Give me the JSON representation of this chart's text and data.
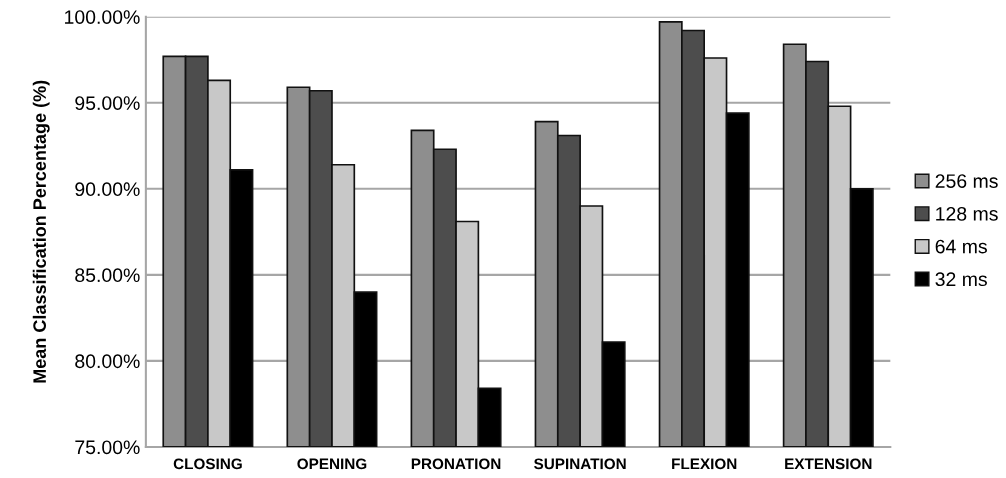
{
  "chart_data": {
    "type": "bar",
    "ylabel": "Mean Classification Percentage (%)",
    "categories": [
      "CLOSING",
      "OPENING",
      "PRONATION",
      "SUPINATION",
      "FLEXION",
      "EXTENSION"
    ],
    "series": [
      {
        "name": "256 ms",
        "color": "#8e8e8e",
        "values": [
          97.7,
          95.9,
          93.4,
          93.9,
          99.7,
          98.4
        ]
      },
      {
        "name": "128 ms",
        "color": "#4d4d4d",
        "values": [
          97.7,
          95.7,
          92.3,
          93.1,
          99.2,
          97.4
        ]
      },
      {
        "name": "64 ms",
        "color": "#c8c8c8",
        "values": [
          96.3,
          91.4,
          88.1,
          89.0,
          97.6,
          94.8
        ]
      },
      {
        "name": "32 ms",
        "color": "#000000",
        "values": [
          91.1,
          84.0,
          78.4,
          81.1,
          94.4,
          90.0
        ]
      }
    ],
    "ylim": [
      75,
      100
    ],
    "yticks": [
      {
        "value": 75,
        "label": "75.00%"
      },
      {
        "value": 80,
        "label": "80.00%"
      },
      {
        "value": 85,
        "label": "85.00%"
      },
      {
        "value": 90,
        "label": "90.00%"
      },
      {
        "value": 95,
        "label": "95.00%"
      },
      {
        "value": 100,
        "label": "100.00%"
      }
    ],
    "grid": "y",
    "legend": "right"
  }
}
